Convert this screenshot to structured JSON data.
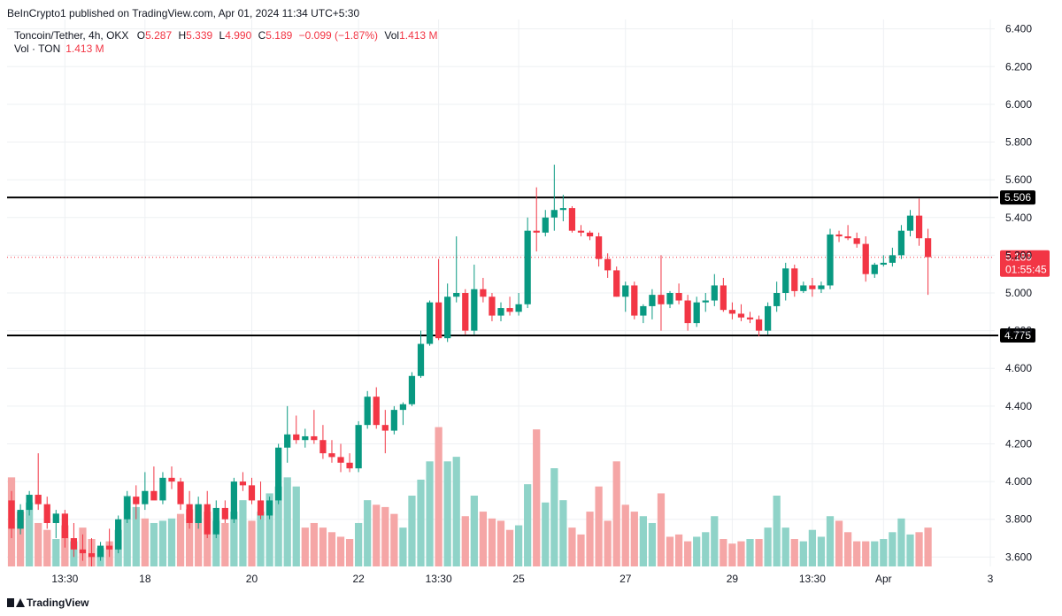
{
  "publisher": "BeInCrypto1 published on TradingView.com, Apr 01, 2024 11:34 UTC+5:30",
  "legend": {
    "symbol": "Toncoin/Tether, 4h, OKX",
    "o_label": "O",
    "o": "5.287",
    "h_label": "H",
    "h": "5.339",
    "l_label": "L",
    "l": "4.990",
    "c_label": "C",
    "c": "5.189",
    "change": "−0.099 (−1.87%)",
    "vol_label": "Vol",
    "vol": "1.413 M",
    "vol_ton_label": "Vol · TON",
    "vol_ton": "1.413 M"
  },
  "footer": {
    "brand": "TradingView"
  },
  "colors": {
    "up": "#089981",
    "down": "#f23645",
    "upVol": "#8fd3c8",
    "downVol": "#f5a6a6",
    "level": "#000000"
  },
  "chart_data": {
    "type": "candlestick",
    "ylim": [
      3.55,
      6.45
    ],
    "yticks": [
      "6.400",
      "6.200",
      "6.000",
      "5.800",
      "5.600",
      "5.400",
      "5.200",
      "5.000",
      "4.800",
      "4.600",
      "4.400",
      "4.200",
      "4.000",
      "3.800",
      "3.600"
    ],
    "xticks": [
      {
        "label": "13:30",
        "index": 6
      },
      {
        "label": "18",
        "index": 15
      },
      {
        "label": "20",
        "index": 27
      },
      {
        "label": "22",
        "index": 39
      },
      {
        "label": "13:30",
        "index": 48
      },
      {
        "label": "25",
        "index": 57
      },
      {
        "label": "27",
        "index": 69
      },
      {
        "label": "29",
        "index": 81
      },
      {
        "label": "13:30",
        "index": 90
      },
      {
        "label": "Apr",
        "index": 98
      },
      {
        "label": "3",
        "index": 110
      }
    ],
    "levels": [
      {
        "value": 5.506,
        "label": "5.506"
      },
      {
        "value": 4.775,
        "label": "4.775"
      }
    ],
    "last_price": {
      "value": 5.189,
      "label": "5.189",
      "countdown": "01:55:45"
    },
    "candles": [
      [
        3.9,
        3.95,
        3.7,
        3.75
      ],
      [
        3.75,
        3.88,
        3.72,
        3.85
      ],
      [
        3.85,
        3.95,
        3.82,
        3.93
      ],
      [
        3.93,
        4.15,
        3.85,
        3.88
      ],
      [
        3.88,
        3.92,
        3.75,
        3.78
      ],
      [
        3.78,
        3.85,
        3.7,
        3.83
      ],
      [
        3.83,
        3.85,
        3.65,
        3.7
      ],
      [
        3.7,
        3.78,
        3.6,
        3.64
      ],
      [
        3.64,
        3.72,
        3.58,
        3.62
      ],
      [
        3.62,
        3.7,
        3.55,
        3.6
      ],
      [
        3.6,
        3.68,
        3.58,
        3.66
      ],
      [
        3.66,
        3.75,
        3.6,
        3.64
      ],
      [
        3.64,
        3.82,
        3.62,
        3.8
      ],
      [
        3.8,
        3.95,
        3.78,
        3.92
      ],
      [
        3.92,
        3.98,
        3.8,
        3.88
      ],
      [
        3.88,
        4.05,
        3.85,
        3.95
      ],
      [
        3.95,
        4.08,
        3.92,
        3.9
      ],
      [
        3.9,
        4.05,
        3.88,
        4.02
      ],
      [
        4.02,
        4.08,
        3.96,
        4.0
      ],
      [
        4.0,
        4.02,
        3.85,
        3.88
      ],
      [
        3.88,
        3.95,
        3.75,
        3.78
      ],
      [
        3.78,
        3.92,
        3.75,
        3.88
      ],
      [
        3.88,
        3.95,
        3.7,
        3.72
      ],
      [
        3.72,
        3.9,
        3.7,
        3.86
      ],
      [
        3.86,
        3.9,
        3.78,
        3.8
      ],
      [
        3.8,
        4.02,
        3.78,
        4.0
      ],
      [
        4.0,
        4.05,
        3.95,
        3.98
      ],
      [
        3.98,
        4.02,
        3.88,
        3.9
      ],
      [
        3.9,
        4.0,
        3.8,
        3.82
      ],
      [
        3.82,
        3.92,
        3.8,
        3.9
      ],
      [
        3.9,
        4.2,
        3.88,
        4.18
      ],
      [
        4.18,
        4.4,
        4.1,
        4.25
      ],
      [
        4.25,
        4.35,
        4.2,
        4.22
      ],
      [
        4.22,
        4.28,
        4.18,
        4.24
      ],
      [
        4.24,
        4.38,
        4.2,
        4.22
      ],
      [
        4.22,
        4.3,
        4.12,
        4.15
      ],
      [
        4.15,
        4.22,
        4.1,
        4.13
      ],
      [
        4.13,
        4.2,
        4.05,
        4.1
      ],
      [
        4.1,
        4.15,
        4.05,
        4.07
      ],
      [
        4.07,
        4.32,
        4.05,
        4.3
      ],
      [
        4.3,
        4.48,
        4.28,
        4.45
      ],
      [
        4.45,
        4.5,
        4.28,
        4.3
      ],
      [
        4.3,
        4.38,
        4.15,
        4.27
      ],
      [
        4.27,
        4.4,
        4.25,
        4.38
      ],
      [
        4.38,
        4.42,
        4.3,
        4.41
      ],
      [
        4.41,
        4.58,
        4.4,
        4.56
      ],
      [
        4.56,
        4.8,
        4.55,
        4.73
      ],
      [
        4.73,
        4.96,
        4.72,
        4.95
      ],
      [
        4.95,
        5.18,
        4.75,
        4.76
      ],
      [
        4.76,
        5.05,
        4.74,
        4.98
      ],
      [
        4.98,
        5.3,
        4.95,
        5.0
      ],
      [
        5.0,
        5.02,
        4.78,
        4.8
      ],
      [
        4.8,
        5.15,
        4.78,
        5.02
      ],
      [
        5.02,
        5.08,
        4.95,
        4.98
      ],
      [
        4.98,
        5.0,
        4.85,
        4.88
      ],
      [
        4.88,
        4.95,
        4.85,
        4.92
      ],
      [
        4.92,
        4.98,
        4.88,
        4.9
      ],
      [
        4.9,
        5.0,
        4.88,
        4.94
      ],
      [
        4.94,
        5.4,
        4.92,
        5.33
      ],
      [
        5.33,
        5.56,
        5.22,
        5.32
      ],
      [
        5.32,
        5.44,
        5.3,
        5.4
      ],
      [
        5.4,
        5.68,
        5.33,
        5.44
      ],
      [
        5.44,
        5.52,
        5.38,
        5.45
      ],
      [
        5.45,
        5.46,
        5.32,
        5.33
      ],
      [
        5.33,
        5.36,
        5.3,
        5.32
      ],
      [
        5.32,
        5.33,
        5.28,
        5.3
      ],
      [
        5.3,
        5.32,
        5.14,
        5.18
      ],
      [
        5.18,
        5.21,
        5.08,
        5.12
      ],
      [
        5.12,
        5.14,
        4.98,
        4.98
      ],
      [
        4.98,
        5.06,
        4.9,
        5.04
      ],
      [
        5.04,
        5.06,
        4.86,
        4.88
      ],
      [
        4.88,
        4.94,
        4.84,
        4.93
      ],
      [
        4.93,
        5.02,
        4.86,
        4.99
      ],
      [
        4.99,
        5.2,
        4.8,
        4.94
      ],
      [
        4.94,
        5.01,
        4.92,
        5.0
      ],
      [
        5.0,
        5.05,
        4.94,
        4.96
      ],
      [
        4.96,
        4.99,
        4.8,
        4.84
      ],
      [
        4.84,
        4.98,
        4.82,
        4.95
      ],
      [
        4.95,
        5.0,
        4.9,
        4.96
      ],
      [
        4.96,
        5.1,
        4.93,
        5.04
      ],
      [
        5.04,
        5.08,
        4.9,
        4.91
      ],
      [
        4.91,
        4.95,
        4.86,
        4.89
      ],
      [
        4.89,
        4.94,
        4.85,
        4.87
      ],
      [
        4.87,
        4.9,
        4.84,
        4.86
      ],
      [
        4.86,
        4.88,
        4.77,
        4.8
      ],
      [
        4.8,
        4.95,
        4.78,
        4.93
      ],
      [
        4.93,
        5.06,
        4.9,
        5.0
      ],
      [
        5.0,
        5.16,
        4.96,
        5.13
      ],
      [
        5.13,
        5.15,
        4.98,
        5.01
      ],
      [
        5.01,
        5.06,
        5.0,
        5.04
      ],
      [
        5.04,
        5.08,
        4.98,
        5.02
      ],
      [
        5.02,
        5.06,
        5.0,
        5.04
      ],
      [
        5.04,
        5.34,
        5.02,
        5.31
      ],
      [
        5.31,
        5.33,
        5.27,
        5.3
      ],
      [
        5.3,
        5.36,
        5.28,
        5.29
      ],
      [
        5.29,
        5.32,
        5.24,
        5.26
      ],
      [
        5.26,
        5.3,
        5.06,
        5.1
      ],
      [
        5.1,
        5.16,
        5.08,
        5.15
      ],
      [
        5.15,
        5.2,
        5.14,
        5.16
      ],
      [
        5.16,
        5.24,
        5.14,
        5.2
      ],
      [
        5.2,
        5.36,
        5.18,
        5.33
      ],
      [
        5.33,
        5.44,
        5.3,
        5.41
      ],
      [
        5.41,
        5.5,
        5.25,
        5.29
      ],
      [
        5.29,
        5.34,
        4.99,
        5.19
      ]
    ],
    "volumes": [
      [
        1.95,
        "d"
      ],
      [
        1.2,
        "d"
      ],
      [
        1.4,
        "u"
      ],
      [
        0.95,
        "d"
      ],
      [
        0.8,
        "d"
      ],
      [
        0.6,
        "u"
      ],
      [
        0.9,
        "d"
      ],
      [
        0.55,
        "u"
      ],
      [
        0.85,
        "d"
      ],
      [
        0.6,
        "d"
      ],
      [
        0.4,
        "u"
      ],
      [
        0.55,
        "d"
      ],
      [
        0.8,
        "u"
      ],
      [
        1.55,
        "u"
      ],
      [
        1.3,
        "u"
      ],
      [
        1.05,
        "d"
      ],
      [
        0.95,
        "u"
      ],
      [
        1.0,
        "u"
      ],
      [
        1.05,
        "u"
      ],
      [
        1.15,
        "d"
      ],
      [
        1.25,
        "d"
      ],
      [
        1.35,
        "d"
      ],
      [
        1.2,
        "d"
      ],
      [
        1.0,
        "u"
      ],
      [
        0.95,
        "d"
      ],
      [
        1.2,
        "u"
      ],
      [
        1.45,
        "u"
      ],
      [
        1.0,
        "d"
      ],
      [
        1.2,
        "u"
      ],
      [
        1.6,
        "u"
      ],
      [
        1.75,
        "u"
      ],
      [
        1.95,
        "u"
      ],
      [
        1.75,
        "u"
      ],
      [
        0.85,
        "d"
      ],
      [
        0.95,
        "d"
      ],
      [
        0.85,
        "d"
      ],
      [
        0.75,
        "d"
      ],
      [
        0.65,
        "d"
      ],
      [
        0.6,
        "d"
      ],
      [
        0.95,
        "u"
      ],
      [
        1.45,
        "u"
      ],
      [
        1.35,
        "d"
      ],
      [
        1.3,
        "d"
      ],
      [
        1.15,
        "d"
      ],
      [
        0.85,
        "u"
      ],
      [
        1.55,
        "u"
      ],
      [
        1.9,
        "u"
      ],
      [
        2.3,
        "u"
      ],
      [
        3.05,
        "d"
      ],
      [
        2.3,
        "u"
      ],
      [
        2.4,
        "u"
      ],
      [
        1.1,
        "d"
      ],
      [
        1.55,
        "u"
      ],
      [
        1.2,
        "d"
      ],
      [
        1.05,
        "d"
      ],
      [
        1.0,
        "d"
      ],
      [
        0.8,
        "d"
      ],
      [
        0.9,
        "u"
      ],
      [
        1.8,
        "u"
      ],
      [
        3.0,
        "d"
      ],
      [
        1.4,
        "u"
      ],
      [
        2.15,
        "u"
      ],
      [
        1.45,
        "u"
      ],
      [
        0.85,
        "d"
      ],
      [
        0.7,
        "d"
      ],
      [
        1.2,
        "d"
      ],
      [
        1.75,
        "d"
      ],
      [
        1.0,
        "d"
      ],
      [
        2.3,
        "d"
      ],
      [
        1.35,
        "d"
      ],
      [
        1.2,
        "d"
      ],
      [
        1.1,
        "u"
      ],
      [
        0.95,
        "u"
      ],
      [
        1.6,
        "d"
      ],
      [
        0.65,
        "d"
      ],
      [
        0.7,
        "d"
      ],
      [
        0.55,
        "d"
      ],
      [
        0.65,
        "u"
      ],
      [
        0.75,
        "u"
      ],
      [
        1.1,
        "u"
      ],
      [
        0.6,
        "d"
      ],
      [
        0.5,
        "d"
      ],
      [
        0.55,
        "d"
      ],
      [
        0.6,
        "u"
      ],
      [
        0.6,
        "d"
      ],
      [
        0.85,
        "u"
      ],
      [
        1.55,
        "u"
      ],
      [
        0.85,
        "u"
      ],
      [
        0.6,
        "d"
      ],
      [
        0.55,
        "u"
      ],
      [
        0.8,
        "u"
      ],
      [
        0.65,
        "u"
      ],
      [
        1.1,
        "u"
      ],
      [
        1.0,
        "d"
      ],
      [
        0.75,
        "d"
      ],
      [
        0.55,
        "d"
      ],
      [
        0.55,
        "d"
      ],
      [
        0.55,
        "u"
      ],
      [
        0.6,
        "u"
      ],
      [
        0.75,
        "u"
      ],
      [
        1.05,
        "u"
      ],
      [
        0.7,
        "u"
      ],
      [
        0.75,
        "d"
      ],
      [
        0.85,
        "d"
      ]
    ]
  }
}
